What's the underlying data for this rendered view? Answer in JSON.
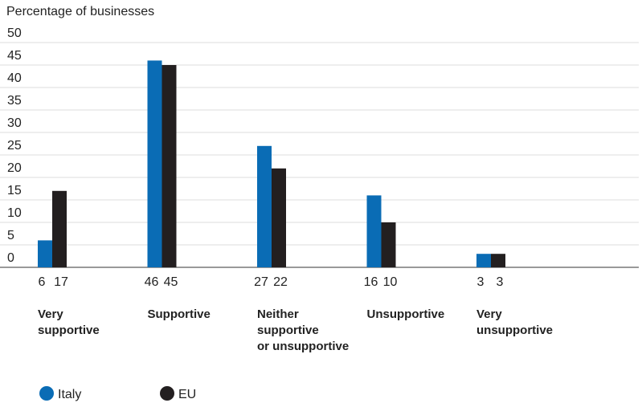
{
  "chart_data": {
    "type": "bar",
    "y_label": "Percentage of businesses",
    "categories": [
      "Very\nsupportive",
      "Supportive",
      "Neither\nsupportive\nor unsupportive",
      "Unsupportive",
      "Very\nunsupportive"
    ],
    "series": [
      {
        "name": "Italy",
        "color": "#0a6cb5",
        "values": [
          6,
          46,
          27,
          16,
          3
        ]
      },
      {
        "name": "EU",
        "color": "#231f20",
        "values": [
          17,
          45,
          22,
          10,
          3
        ]
      }
    ],
    "ylim": [
      0,
      50
    ],
    "yticks": [
      0,
      5,
      10,
      15,
      20,
      25,
      30,
      35,
      40,
      45,
      50
    ],
    "grid": true
  }
}
